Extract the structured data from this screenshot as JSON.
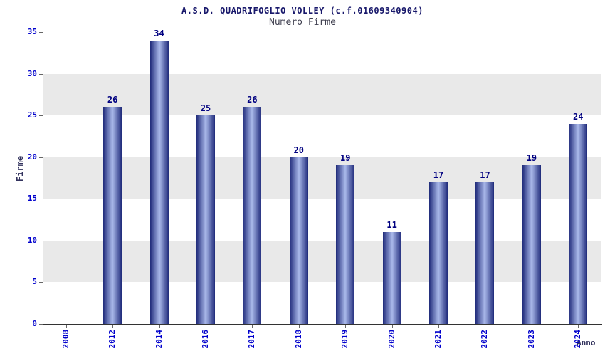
{
  "chart_data": {
    "type": "bar",
    "title": "A.S.D. QUADRIFOGLIO VOLLEY (c.f.01609340904)",
    "subtitle": "Numero Firme",
    "xlabel": "Anno",
    "ylabel": "Firme",
    "categories": [
      "2008",
      "2012",
      "2014",
      "2016",
      "2017",
      "2018",
      "2019",
      "2020",
      "2021",
      "2022",
      "2023",
      "2024"
    ],
    "values": [
      0,
      26,
      34,
      25,
      26,
      20,
      19,
      11,
      17,
      17,
      19,
      24
    ],
    "ylim": [
      0,
      35
    ],
    "ytick_step": 5,
    "grid": "horizontal-bands",
    "legend": "none",
    "colors": {
      "bar_edge": "#1f2a7a",
      "bar_center": "#aab9ea",
      "band_gray": "#e9e9e9",
      "band_white": "#ffffff",
      "tick_label": "#0000cc",
      "value_label": "#000080",
      "title": "#18186b",
      "subtitle": "#404050",
      "axis_line": "#333333"
    }
  }
}
